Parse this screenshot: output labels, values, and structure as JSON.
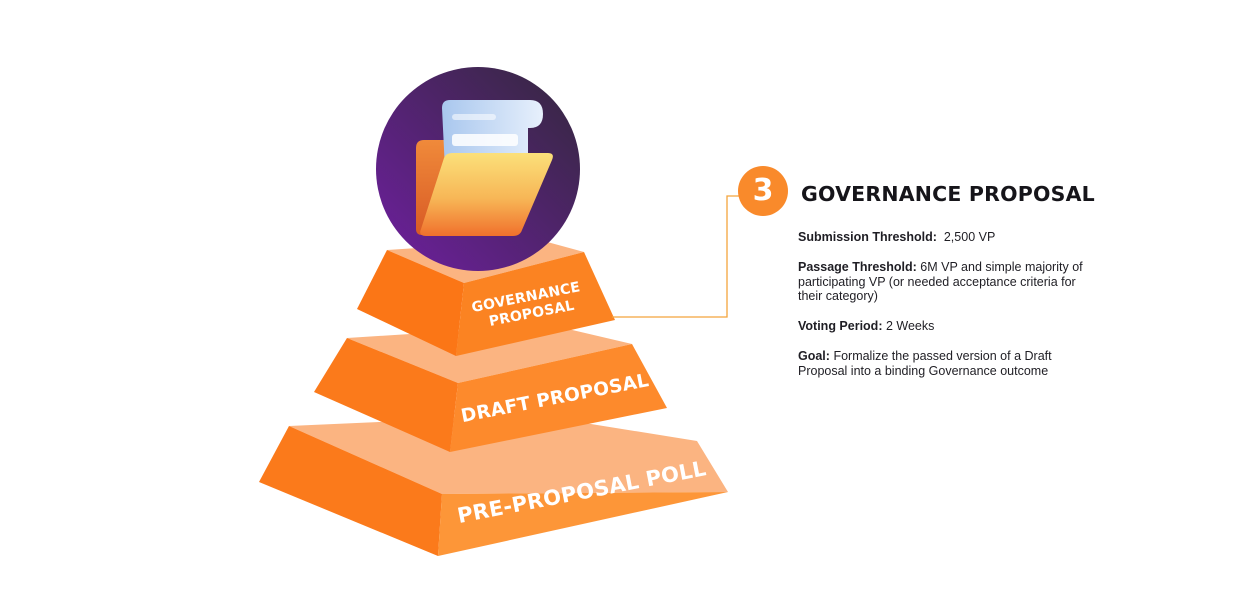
{
  "tiers": [
    {
      "label_lines": [
        "GOVERNANCE",
        "PROPOSAL"
      ]
    },
    {
      "label_lines": [
        "DRAFT PROPOSAL"
      ]
    },
    {
      "label_lines": [
        "PRE-PROPOSAL POLL"
      ]
    }
  ],
  "callout": {
    "number": "3",
    "title": "GOVERNANCE PROPOSAL",
    "details": [
      {
        "label": "Submission Threshold:",
        "value": "2,500 VP"
      },
      {
        "label": "Passage Threshold:",
        "value": "6M VP and simple majority of participating VP (or needed acceptance criteria for their category)"
      },
      {
        "label": "Voting Period:",
        "value": "2 Weeks"
      },
      {
        "label": "Goal:",
        "value": "Formalize the passed version of a Draft Proposal into a binding Governance outcome"
      }
    ]
  },
  "icon": "folder-with-document-icon",
  "colors": {
    "tier_front": "#fb8a28",
    "tier_side": "#fb7016",
    "tier_top": "#fbb481",
    "circle": "#6b2898",
    "connector": "#f3a53c",
    "badge": "#f98a2b"
  }
}
